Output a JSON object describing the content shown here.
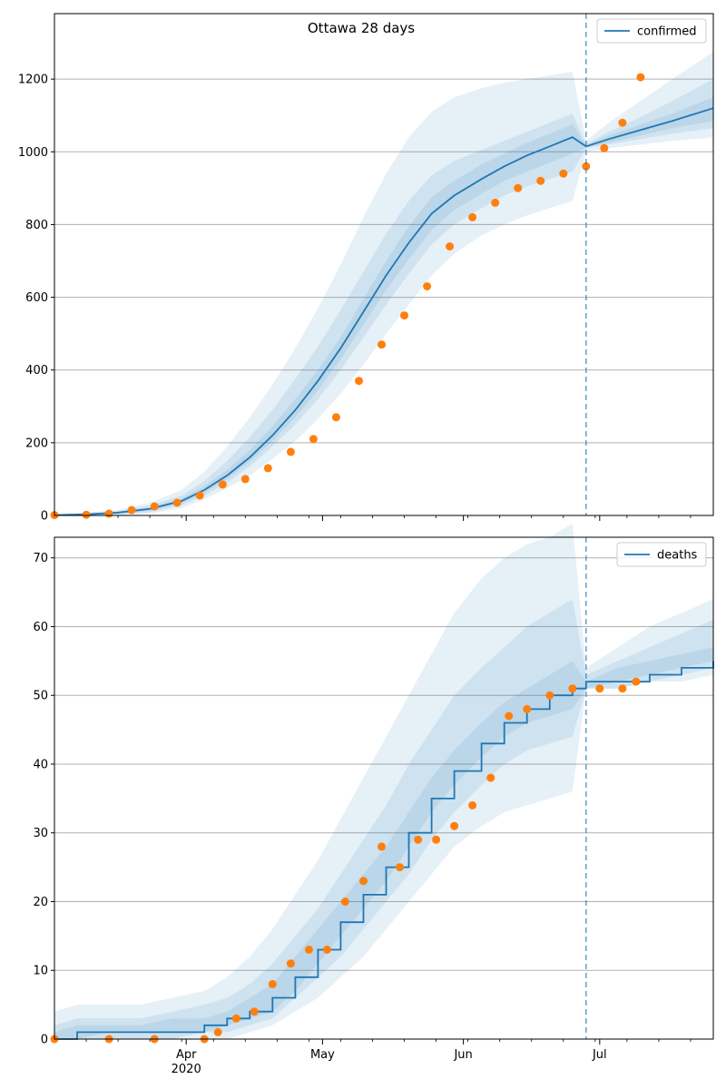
{
  "title": "Ottawa 28 days",
  "chart_data": [
    {
      "type": "line",
      "panel": "confirmed",
      "legend": {
        "label": "confirmed",
        "placement": "top-right"
      },
      "colors": {
        "line": "#1f77b4",
        "observed": "#ff7f0e",
        "band": "#1f77b4",
        "forecast_marker": "#1f77b4",
        "grid": "#b0b0b0"
      },
      "x_range": [
        "2020-03-03",
        "2020-07-26"
      ],
      "ylim": [
        0,
        1380
      ],
      "yticks": [
        0,
        200,
        400,
        600,
        800,
        1000,
        1200
      ],
      "grid": "horizontal",
      "forecast_start": "2020-06-28",
      "model": {
        "x": [
          "2020-03-03",
          "2020-03-10",
          "2020-03-17",
          "2020-03-24",
          "2020-03-31",
          "2020-04-05",
          "2020-04-10",
          "2020-04-15",
          "2020-04-20",
          "2020-04-25",
          "2020-04-30",
          "2020-05-05",
          "2020-05-10",
          "2020-05-15",
          "2020-05-20",
          "2020-05-25",
          "2020-05-30",
          "2020-06-05",
          "2020-06-10",
          "2020-06-15",
          "2020-06-20",
          "2020-06-25",
          "2020-06-28",
          "2020-07-03",
          "2020-07-10",
          "2020-07-17",
          "2020-07-26"
        ],
        "y": [
          1,
          3,
          8,
          18,
          40,
          70,
          110,
          160,
          220,
          290,
          370,
          460,
          560,
          660,
          750,
          830,
          880,
          925,
          960,
          990,
          1015,
          1040,
          1015,
          1035,
          1060,
          1085,
          1120
        ],
        "bands": [
          {
            "lower": [
              0,
              0,
              0,
              5,
              20,
              45,
              75,
              110,
              155,
              205,
              265,
              335,
              415,
              500,
              580,
              660,
              720,
              770,
              800,
              825,
              845,
              865,
              1000,
              1010,
              1020,
              1030,
              1040
            ],
            "upper": [
              5,
              8,
              15,
              35,
              70,
              120,
              190,
              270,
              360,
              460,
              570,
              690,
              820,
              940,
              1040,
              1110,
              1150,
              1175,
              1190,
              1200,
              1210,
              1220,
              1030,
              1080,
              1140,
              1200,
              1275
            ]
          },
          {
            "lower": [
              0,
              1,
              3,
              9,
              28,
              55,
              90,
              135,
              190,
              250,
              320,
              400,
              490,
              580,
              665,
              745,
              800,
              845,
              880,
              905,
              925,
              945,
              1010,
              1020,
              1035,
              1050,
              1065
            ],
            "upper": [
              3,
              5,
              12,
              27,
              55,
              95,
              150,
              215,
              290,
              375,
              465,
              565,
              670,
              775,
              865,
              935,
              975,
              1005,
              1030,
              1055,
              1080,
              1105,
              1022,
              1055,
              1095,
              1140,
              1200
            ]
          },
          {
            "lower": [
              0,
              2,
              5,
              13,
              34,
              62,
              100,
              148,
              205,
              270,
              345,
              430,
              525,
              620,
              705,
              785,
              840,
              885,
              920,
              945,
              970,
              995,
              1012,
              1025,
              1045,
              1065,
              1085
            ],
            "upper": [
              2,
              4,
              10,
              22,
              47,
              80,
              125,
              180,
              245,
              320,
              400,
              490,
              595,
              700,
              795,
              875,
              920,
              965,
              995,
              1025,
              1050,
              1075,
              1018,
              1045,
              1075,
              1105,
              1150
            ]
          }
        ]
      },
      "observed": {
        "x": [
          "2020-03-03",
          "2020-03-10",
          "2020-03-15",
          "2020-03-20",
          "2020-03-25",
          "2020-03-30",
          "2020-04-04",
          "2020-04-09",
          "2020-04-14",
          "2020-04-19",
          "2020-04-24",
          "2020-04-29",
          "2020-05-04",
          "2020-05-09",
          "2020-05-14",
          "2020-05-19",
          "2020-05-24",
          "2020-05-29",
          "2020-06-03",
          "2020-06-08",
          "2020-06-13",
          "2020-06-18",
          "2020-06-23",
          "2020-06-28",
          "2020-07-02",
          "2020-07-06",
          "2020-07-10"
        ],
        "y": [
          1,
          2,
          5,
          15,
          25,
          35,
          55,
          85,
          100,
          130,
          175,
          210,
          270,
          370,
          470,
          550,
          630,
          740,
          820,
          860,
          900,
          920,
          940,
          960,
          1010,
          1080,
          1205
        ]
      }
    },
    {
      "type": "line",
      "panel": "deaths",
      "legend": {
        "label": "deaths",
        "placement": "top-right"
      },
      "colors": {
        "line": "#1f77b4",
        "observed": "#ff7f0e",
        "band": "#1f77b4",
        "forecast_marker": "#1f77b4",
        "grid": "#b0b0b0"
      },
      "x_range": [
        "2020-03-03",
        "2020-07-26"
      ],
      "ylim": [
        0,
        73
      ],
      "yticks": [
        0,
        10,
        20,
        30,
        40,
        50,
        60,
        70
      ],
      "grid": "horizontal",
      "forecast_start": "2020-06-28",
      "xticks": [
        {
          "date": "2020-04-01",
          "label": "Apr",
          "sublabel": "2020"
        },
        {
          "date": "2020-05-01",
          "label": "May"
        },
        {
          "date": "2020-06-01",
          "label": "Jun"
        },
        {
          "date": "2020-07-01",
          "label": "Jul"
        }
      ],
      "model": {
        "x": [
          "2020-03-03",
          "2020-03-08",
          "2020-03-15",
          "2020-03-22",
          "2020-03-29",
          "2020-04-05",
          "2020-04-10",
          "2020-04-15",
          "2020-04-20",
          "2020-04-25",
          "2020-04-30",
          "2020-05-05",
          "2020-05-10",
          "2020-05-15",
          "2020-05-20",
          "2020-05-25",
          "2020-05-30",
          "2020-06-05",
          "2020-06-10",
          "2020-06-15",
          "2020-06-20",
          "2020-06-25",
          "2020-06-28",
          "2020-07-05",
          "2020-07-12",
          "2020-07-19",
          "2020-07-26"
        ],
        "y": [
          0,
          1,
          1,
          1,
          1,
          2,
          3,
          4,
          6,
          9,
          13,
          17,
          21,
          25,
          30,
          35,
          39,
          43,
          46,
          48,
          50,
          51,
          52,
          52,
          53,
          54,
          55
        ],
        "bands": [
          {
            "lower": [
              0,
              0,
              0,
              0,
              0,
              0,
              0,
              1,
              2,
              4,
              6,
              9,
              12,
              16,
              20,
              24,
              28,
              31,
              33,
              34,
              35,
              36,
              51,
              51,
              52,
              52,
              53
            ],
            "upper": [
              4,
              5,
              5,
              5,
              6,
              7,
              9,
              12,
              16,
              21,
              26,
              32,
              38,
              44,
              50,
              56,
              62,
              67,
              70,
              72,
              73,
              75,
              54,
              57,
              60,
              62,
              64
            ]
          },
          {
            "lower": [
              0,
              0,
              0,
              0,
              0,
              1,
              1,
              2,
              3,
              6,
              9,
              12,
              16,
              20,
              24,
              29,
              33,
              37,
              40,
              42,
              43,
              44,
              51,
              51,
              52,
              53,
              54
            ],
            "upper": [
              2,
              3,
              3,
              3,
              4,
              5,
              6,
              8,
              11,
              15,
              19,
              24,
              29,
              34,
              40,
              45,
              50,
              54,
              57,
              60,
              62,
              64,
              53,
              55,
              57,
              59,
              61
            ]
          },
          {
            "lower": [
              0,
              0,
              1,
              1,
              1,
              1,
              2,
              3,
              4,
              7,
              11,
              15,
              19,
              23,
              28,
              33,
              37,
              41,
              44,
              46,
              47,
              48,
              51,
              52,
              53,
              54,
              55
            ],
            "upper": [
              1,
              2,
              2,
              2,
              3,
              3,
              4,
              6,
              8,
              12,
              16,
              20,
              24,
              28,
              33,
              38,
              42,
              46,
              49,
              51,
              53,
              55,
              52,
              54,
              55,
              56,
              57
            ]
          }
        ]
      },
      "observed": {
        "x": [
          "2020-03-03",
          "2020-03-15",
          "2020-03-25",
          "2020-04-05",
          "2020-04-08",
          "2020-04-12",
          "2020-04-16",
          "2020-04-20",
          "2020-04-24",
          "2020-04-28",
          "2020-05-02",
          "2020-05-06",
          "2020-05-10",
          "2020-05-14",
          "2020-05-18",
          "2020-05-22",
          "2020-05-26",
          "2020-05-30",
          "2020-06-03",
          "2020-06-07",
          "2020-06-11",
          "2020-06-15",
          "2020-06-20",
          "2020-06-25",
          "2020-07-01",
          "2020-07-06",
          "2020-07-09"
        ],
        "y": [
          0,
          0,
          0,
          0,
          1,
          3,
          4,
          8,
          11,
          13,
          13,
          20,
          23,
          28,
          25,
          29,
          29,
          31,
          34,
          38,
          47,
          48,
          50,
          51,
          51,
          51,
          52
        ]
      }
    }
  ]
}
